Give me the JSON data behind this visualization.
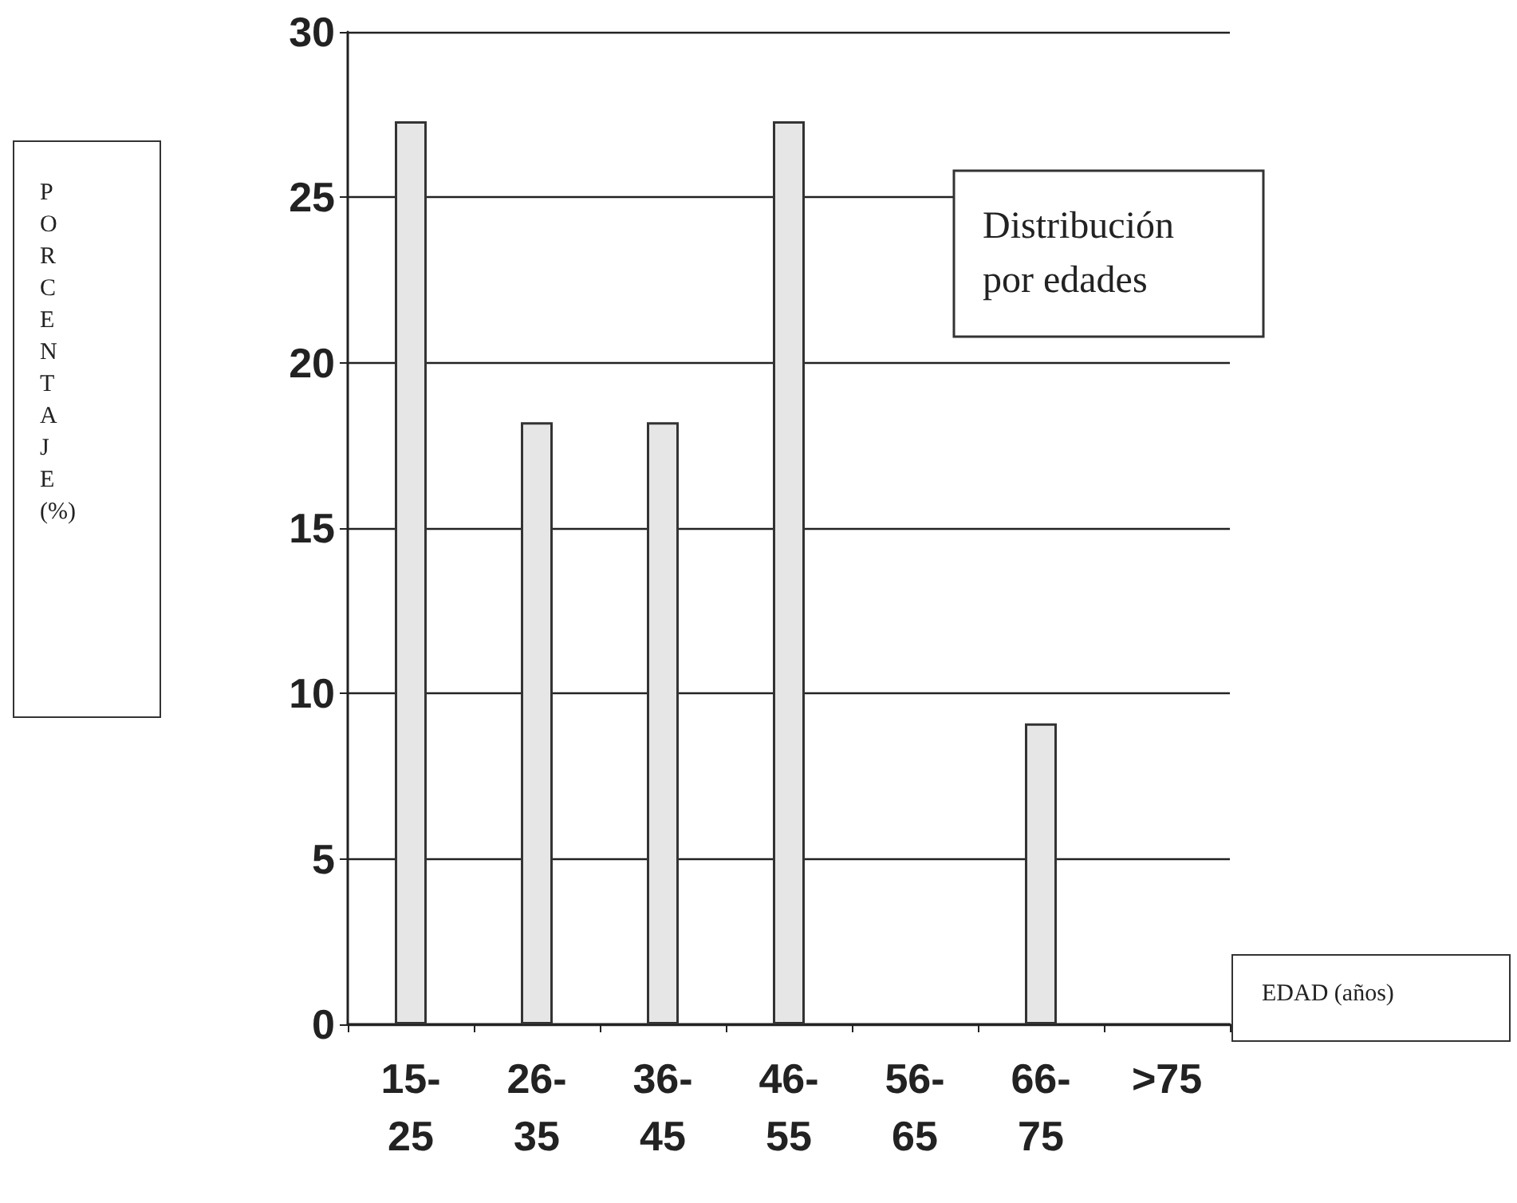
{
  "chart_data": {
    "type": "bar",
    "title": "Distribución por edades",
    "xlabel": "EDAD (años)",
    "ylabel": "PORCENTAJE (%)",
    "categories": [
      "15-25",
      "26-35",
      "36-45",
      "46-55",
      "56-65",
      "66-75",
      ">75"
    ],
    "values": [
      27.3,
      18.2,
      18.2,
      27.3,
      0,
      9.1,
      0
    ],
    "color": "#e6e6e6",
    "ylim": [
      0,
      30
    ],
    "yticks": [
      0,
      5,
      10,
      15,
      20,
      25,
      30
    ],
    "grid": "y"
  }
}
